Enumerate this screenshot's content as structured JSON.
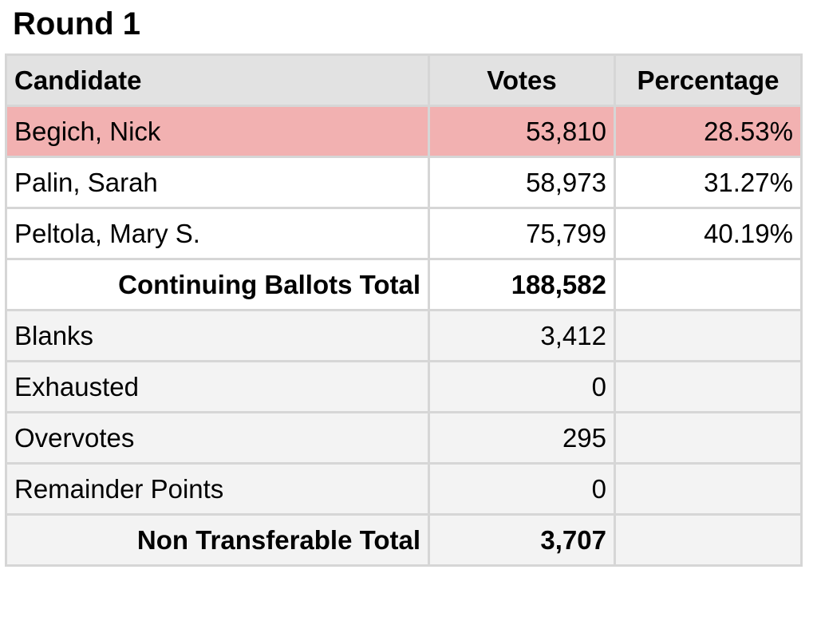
{
  "title": "Round 1",
  "table": {
    "header": [
      "Candidate",
      "Votes",
      "Percentage"
    ],
    "rows": [
      [
        "Begich, Nick",
        "53,810",
        "28.53%"
      ],
      [
        "Palin, Sarah",
        "58,973",
        "31.27%"
      ],
      [
        "Peltola, Mary S.",
        "75,799",
        "40.19%"
      ],
      [
        "Continuing Ballots Total",
        "188,582"
      ],
      [
        "Blanks",
        "3,412"
      ],
      [
        "Exhausted",
        "0"
      ],
      [
        "Overvotes",
        "295"
      ],
      [
        "Remainder Points",
        "0"
      ],
      [
        "Non Transferable Total",
        "3,707"
      ]
    ]
  }
}
